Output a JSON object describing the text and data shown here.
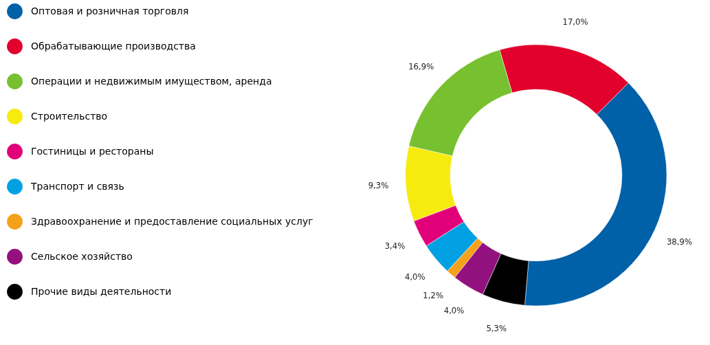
{
  "chart_data": {
    "type": "donut",
    "categories": [
      "Оптовая и розничная торговля",
      "Обрабатывающие производства",
      "Операции и недвижимым имуществом, аренда",
      "Строительство",
      "Гостиницы и рестораны",
      "Транспорт и связь",
      "Здравоохранение и предоставление социальных услуг",
      "Сельское хозяйство",
      "Прочие виды деятельности"
    ],
    "values": [
      38.9,
      17.0,
      16.9,
      9.3,
      3.4,
      4.0,
      1.2,
      4.0,
      5.3
    ],
    "value_labels": [
      "38,9%",
      "17,0%",
      "16,9%",
      "9,3%",
      "3,4%",
      "4,0%",
      "1,2%",
      "4,0%",
      "5,3%"
    ],
    "colors": [
      "#0060a8",
      "#e2002d",
      "#77c02f",
      "#f6eb0e",
      "#e2007a",
      "#00a0e3",
      "#f4a11b",
      "#93117e",
      "#000000"
    ],
    "legend": "left"
  }
}
